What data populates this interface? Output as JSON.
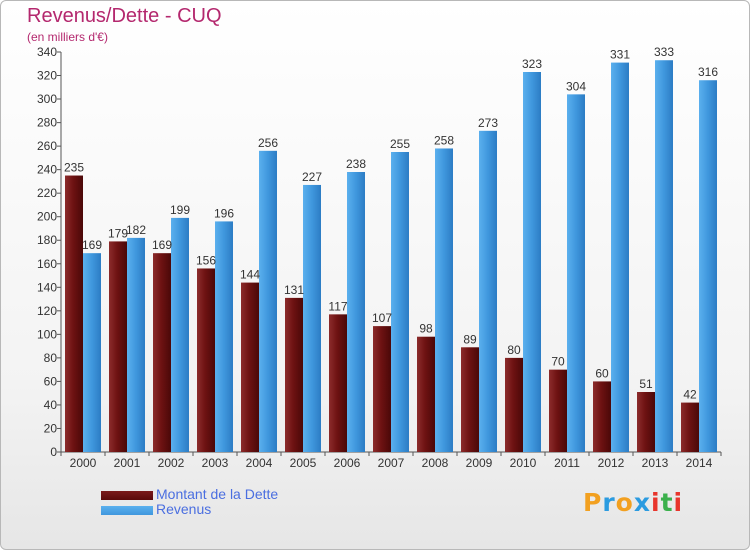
{
  "title": "Revenus/Dette - CUQ",
  "subtitle": "(en milliers d'€)",
  "logo": {
    "text": "Proxiti",
    "letters": [
      {
        "ch": "P",
        "color": "#f2a020"
      },
      {
        "ch": "r",
        "color": "#2b9be0"
      },
      {
        "ch": "o",
        "color": "#f2a020"
      },
      {
        "ch": "x",
        "color": "#2b9be0"
      },
      {
        "ch": "i",
        "color": "#e8352c"
      },
      {
        "ch": "t",
        "color": "#3bb04c"
      },
      {
        "ch": "i",
        "color": "#e8352c"
      }
    ]
  },
  "chart_data": {
    "type": "bar",
    "title": "Revenus/Dette - CUQ",
    "subtitle": "(en milliers d'€)",
    "categories": [
      "2000",
      "2001",
      "2002",
      "2003",
      "2004",
      "2005",
      "2006",
      "2007",
      "2008",
      "2009",
      "2010",
      "2011",
      "2012",
      "2013",
      "2014"
    ],
    "series": [
      {
        "name": "Montant de la Dette",
        "color": "#7a1a1a",
        "values": [
          235,
          179,
          169,
          156,
          144,
          131,
          117,
          107,
          98,
          89,
          80,
          70,
          60,
          51,
          42
        ]
      },
      {
        "name": "Revenus",
        "color": "#3f97dd",
        "values": [
          169,
          182,
          199,
          196,
          256,
          227,
          238,
          255,
          258,
          273,
          323,
          304,
          331,
          333,
          316
        ]
      }
    ],
    "ylim": [
      0,
      340
    ],
    "ytick_step": 20,
    "grid": false,
    "data_labels": true,
    "legend_position": "bottom-left"
  }
}
